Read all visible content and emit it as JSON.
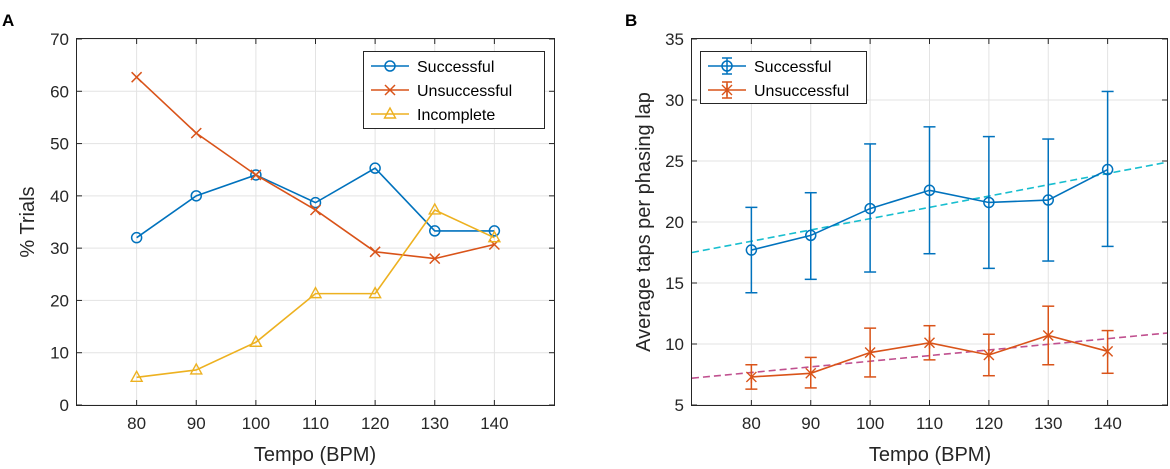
{
  "chart_data": [
    {
      "panel": "A",
      "type": "line",
      "xlabel": "Tempo (BPM)",
      "ylabel": "% Trials",
      "xlim": [
        70,
        150
      ],
      "ylim": [
        0,
        70
      ],
      "xticks": [
        80,
        90,
        100,
        110,
        120,
        130,
        140
      ],
      "yticks": [
        0,
        10,
        20,
        30,
        40,
        50,
        60,
        70
      ],
      "grid": true,
      "legend_position": "top-right",
      "x": [
        80,
        90,
        100,
        110,
        120,
        130,
        140
      ],
      "series": [
        {
          "name": "Successful",
          "color": "#0072BD",
          "marker": "circle",
          "values": [
            32,
            40,
            44,
            38.7,
            45.3,
            33.3,
            33.3
          ]
        },
        {
          "name": "Unsuccessful",
          "color": "#D95319",
          "marker": "x",
          "values": [
            62.7,
            52,
            44,
            37.3,
            29.3,
            28,
            30.7
          ]
        },
        {
          "name": "Incomplete",
          "color": "#EDB120",
          "marker": "triangle",
          "values": [
            5.3,
            6.7,
            12,
            21.3,
            21.3,
            37.3,
            32
          ]
        }
      ]
    },
    {
      "panel": "B",
      "type": "line",
      "xlabel": "Tempo (BPM)",
      "ylabel": "Average taps per phasing lap",
      "xlim": [
        70,
        150
      ],
      "ylim": [
        5,
        35
      ],
      "xticks": [
        80,
        90,
        100,
        110,
        120,
        130,
        140
      ],
      "yticks": [
        5,
        10,
        15,
        20,
        25,
        30,
        35
      ],
      "grid": true,
      "legend_position": "top-left",
      "x": [
        80,
        90,
        100,
        110,
        120,
        130,
        140
      ],
      "series": [
        {
          "name": "Successful",
          "color": "#0072BD",
          "marker": "circle",
          "values": [
            17.7,
            18.9,
            21.1,
            22.6,
            21.6,
            21.8,
            24.3
          ],
          "err_low": [
            14.2,
            15.3,
            15.9,
            17.4,
            16.2,
            16.8,
            18.0
          ],
          "err_high": [
            21.2,
            22.4,
            26.4,
            27.8,
            27.0,
            26.8,
            30.7
          ]
        },
        {
          "name": "Unsuccessful",
          "color": "#D95319",
          "marker": "asterisk",
          "values": [
            7.3,
            7.6,
            9.3,
            10.1,
            9.1,
            10.7,
            9.4
          ],
          "err_low": [
            6.3,
            6.4,
            7.3,
            8.7,
            7.4,
            8.3,
            7.6
          ],
          "err_high": [
            8.3,
            8.9,
            11.3,
            11.5,
            10.8,
            13.1,
            11.1
          ]
        }
      ],
      "trendlines": [
        {
          "color": "#17BECF",
          "x": [
            70,
            150
          ],
          "y": [
            17.5,
            24.9
          ]
        },
        {
          "color": "#C0508F",
          "x": [
            70,
            150
          ],
          "y": [
            7.2,
            10.9
          ]
        }
      ]
    }
  ]
}
